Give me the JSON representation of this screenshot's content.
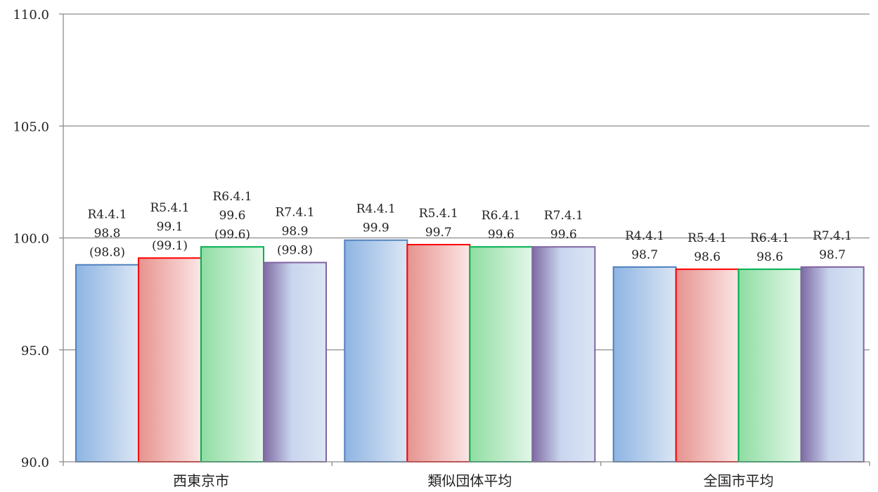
{
  "chart_data": {
    "type": "bar",
    "title": "",
    "xlabel": "",
    "ylabel": "",
    "ylim": [
      90,
      110
    ],
    "yticks": [
      "90.0",
      "95.0",
      "100.0",
      "105.0",
      "110.0"
    ],
    "grid": true,
    "legend": "none",
    "categories": [
      "西東京市",
      "類似団体平均",
      "全国市平均"
    ],
    "series": [
      {
        "name": "R4.4.1",
        "color": "#4f81bd",
        "values": [
          98.8,
          99.9,
          98.7
        ],
        "labels": [
          [
            "R4.4.1",
            "98.8",
            "(98.8)"
          ],
          [
            "R4.4.1",
            "99.9"
          ],
          [
            "R4.4.1",
            "98.7"
          ]
        ]
      },
      {
        "name": "R5.4.1",
        "color": "#ff0000",
        "values": [
          99.1,
          99.7,
          98.6
        ],
        "labels": [
          [
            "R5.4.1",
            "99.1",
            "(99.1)"
          ],
          [
            "R5.4.1",
            "99.7"
          ],
          [
            "R5.4.1",
            "98.6"
          ]
        ]
      },
      {
        "name": "R6.4.1",
        "color": "#00b050",
        "values": [
          99.6,
          99.6,
          98.6
        ],
        "labels": [
          [
            "R6.4.1",
            "99.6",
            "(99.6)"
          ],
          [
            "R6.4.1",
            "99.6"
          ],
          [
            "R6.4.1",
            "98.6"
          ]
        ]
      },
      {
        "name": "R7.4.1",
        "color": "#8064a2",
        "values": [
          98.9,
          99.6,
          98.7
        ],
        "labels": [
          [
            "R7.4.1",
            "98.9",
            "(99.8)"
          ],
          [
            "R7.4.1",
            "99.6"
          ],
          [
            "R7.4.1",
            "98.7"
          ]
        ]
      }
    ]
  }
}
